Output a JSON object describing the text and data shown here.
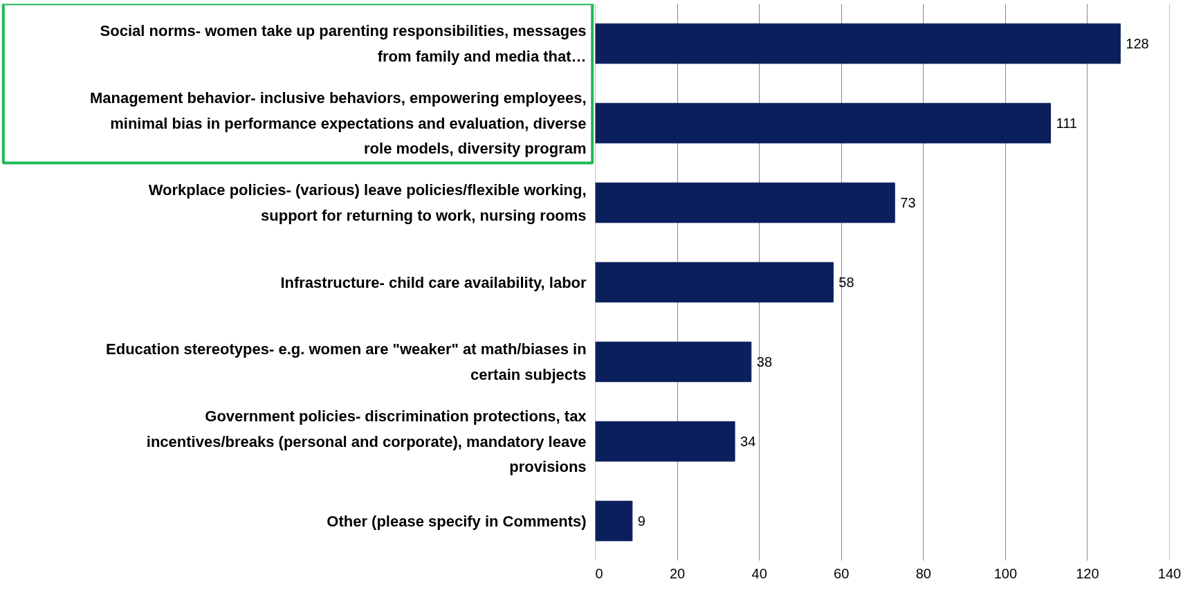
{
  "chart_data": {
    "type": "bar",
    "orientation": "horizontal",
    "categories": [
      "Social norms- women take up parenting responsibilities, messages from family and media that…",
      "Management behavior- inclusive behaviors, empowering employees, minimal bias in performance expectations and evaluation, diverse role models, diversity program",
      "Workplace policies- (various) leave policies/flexible working, support for returning to work, nursing rooms",
      "Infrastructure- child care availability, labor",
      "Education stereotypes- e.g. women are \"weaker\" at math/biases in certain subjects",
      "Government policies- discrimination protections, tax incentives/breaks (personal and corporate), mandatory leave provisions",
      "Other (please specify in Comments)"
    ],
    "values": [
      128,
      111,
      73,
      58,
      38,
      34,
      9
    ],
    "color": "#0b1f5c",
    "xlim": [
      0,
      140
    ],
    "xticks": [
      0,
      20,
      40,
      60,
      80,
      100,
      120,
      140
    ],
    "grid": "x",
    "data_labels": true
  }
}
